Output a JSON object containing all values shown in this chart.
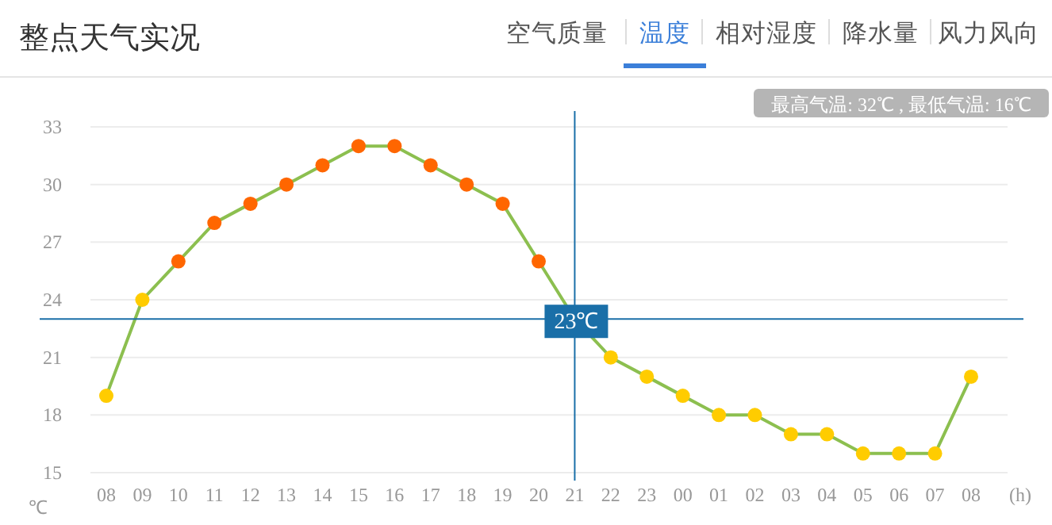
{
  "chart_data": {
    "type": "line",
    "title": "整点天气实况",
    "annotations": [
      "空气质量",
      "温度",
      "相对湿度",
      "降水量",
      "风力风向",
      "最高气温: 32℃ , 最低气温: 16℃"
    ],
    "xlabel": "(h)",
    "ylabel": "℃",
    "categories": [
      "08",
      "09",
      "10",
      "11",
      "12",
      "13",
      "14",
      "15",
      "16",
      "17",
      "18",
      "19",
      "20",
      "21",
      "22",
      "23",
      "00",
      "01",
      "02",
      "03",
      "04",
      "05",
      "06",
      "07",
      "08"
    ],
    "series": [
      {
        "color": "#8cbf4f",
        "values": [
          19,
          24,
          26,
          28,
          29,
          30,
          31,
          32,
          32,
          31,
          30,
          29,
          26,
          23,
          21,
          20,
          19,
          18,
          18,
          17,
          17,
          16,
          16,
          16,
          20
        ],
        "colors": [
          "#ffcc00",
          "#ffcc00",
          "#ff6600",
          "#ff6600",
          "#ff6600",
          "#ff6600",
          "#ff6600",
          "#ff6600",
          "#ff6600",
          "#ff6600",
          "#ff6600",
          "#ff6600",
          "#ff6600",
          "#ffcc00",
          "#ffcc00",
          "#ffcc00",
          "#ffcc00",
          "#ffcc00",
          "#ffcc00",
          "#ffcc00",
          "#ffcc00",
          "#ffcc00",
          "#ffcc00",
          "#ffcc00",
          "#ffcc00"
        ]
      }
    ],
    "ylim": [
      15,
      33
    ],
    "yticks": [
      15,
      18,
      21,
      24,
      27,
      30,
      33
    ],
    "grid": "y",
    "marker": "circle",
    "line_style": "solid",
    "ref_lines": [
      {
        "axis": "x",
        "value": "21",
        "color": "#1a6fa8"
      },
      {
        "axis": "y",
        "value": 23,
        "label": "23℃",
        "color": "#1a6fa8"
      }
    ]
  }
}
